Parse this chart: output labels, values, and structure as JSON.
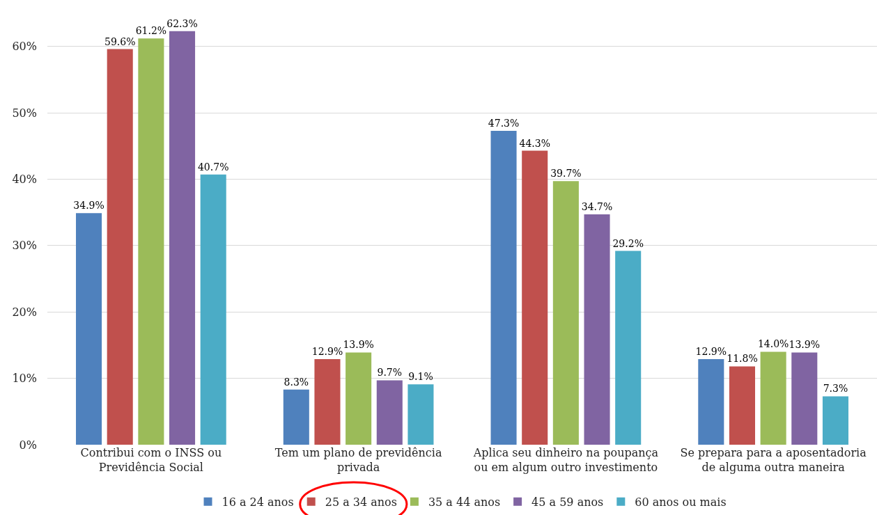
{
  "chart_data": {
    "type": "bar",
    "categories": [
      "Contribui com o INSS ou Previdência Social",
      "Tem um plano de previdência privada",
      "Aplica seu dinheiro na poupança ou em algum outro investimento",
      "Se prepara para a aposentadoria de alguma outra maneira"
    ],
    "series": [
      {
        "name": "16 a 24 anos",
        "color": "#4f81bd",
        "values": [
          34.9,
          8.3,
          47.3,
          12.9
        ],
        "value_labels": [
          "34.9%",
          "8.3%",
          "47.3%",
          "12.9%"
        ]
      },
      {
        "name": "25 a 34 anos",
        "color": "#c0504d",
        "values": [
          59.6,
          12.9,
          44.3,
          11.8
        ],
        "value_labels": [
          "59.6%",
          "12.9%",
          "44.3%",
          "11.8%"
        ]
      },
      {
        "name": "35 a 44 anos",
        "color": "#9bbb59",
        "values": [
          61.2,
          13.9,
          39.7,
          14.0
        ],
        "value_labels": [
          "61.2%",
          "13.9%",
          "39.7%",
          "14.0%"
        ]
      },
      {
        "name": "45 a 59 anos",
        "color": "#8064a2",
        "values": [
          62.3,
          9.7,
          34.7,
          13.9
        ],
        "value_labels": [
          "62.3%",
          "9.7%",
          "34.7%",
          "13.9%"
        ]
      },
      {
        "name": "60 anos ou mais",
        "color": "#4bacc6",
        "values": [
          40.7,
          9.1,
          29.2,
          7.3
        ],
        "value_labels": [
          "40.7%",
          "9.1%",
          "29.2%",
          "7.3%"
        ]
      }
    ],
    "ylim": [
      0,
      67
    ],
    "yticks": [
      {
        "value": 0,
        "label": "0%"
      },
      {
        "value": 10,
        "label": "10%"
      },
      {
        "value": 20,
        "label": "20%"
      },
      {
        "value": 30,
        "label": "30%"
      },
      {
        "value": 40,
        "label": "40%"
      },
      {
        "value": 50,
        "label": "50%"
      },
      {
        "value": 60,
        "label": "60%"
      }
    ],
    "grid": "y",
    "legend": "bottom"
  }
}
